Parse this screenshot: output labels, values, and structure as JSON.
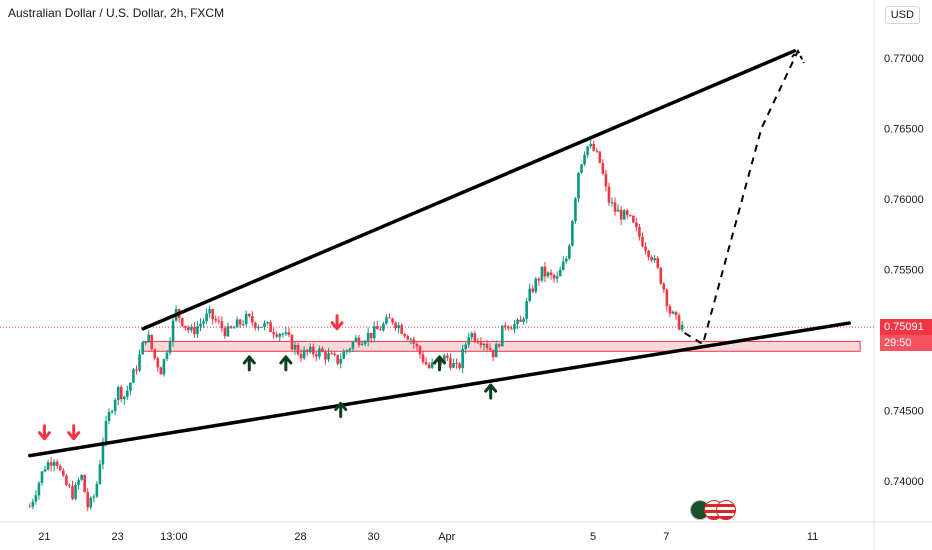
{
  "header": {
    "title": "Australian Dollar / U.S. Dollar, 2h, FXCM",
    "currency": "USD"
  },
  "price_tag": {
    "price": "0.75091",
    "countdown": "29:50"
  },
  "flags": [
    "australia-flag-icon",
    "usa-flag-icon",
    "usa-flag-icon"
  ],
  "colors": {
    "up": "#089981",
    "down": "#f23645",
    "trendline": "#000000",
    "support_zone_fill": "#f8c8cc",
    "support_zone_stroke": "#f23645",
    "arrow_up": "#0b3d1f",
    "arrow_down": "#f23645"
  },
  "chart_data": {
    "type": "candlestick",
    "symbol": "AUDUSD",
    "timeframe": "2h",
    "x_axis_labels": [
      "21",
      "23",
      "13:00",
      "28",
      "30",
      "Apr",
      "5",
      "7",
      "11"
    ],
    "y_axis_labels": [
      "0.77000",
      "0.76500",
      "0.76000",
      "0.75500",
      "0.75000",
      "0.74500",
      "0.74000"
    ],
    "ylim": [
      0.737,
      0.774
    ],
    "x_range_days": [
      20.6,
      42.9
    ],
    "x_tick_days": [
      21,
      23,
      24.54,
      28,
      30,
      32,
      36,
      38,
      42
    ],
    "current_price": 0.75091,
    "close_path": [
      [
        20.6,
        0.7382
      ],
      [
        21.0,
        0.741
      ],
      [
        21.3,
        0.7418
      ],
      [
        21.5,
        0.74
      ],
      [
        21.8,
        0.739
      ],
      [
        22.0,
        0.7405
      ],
      [
        22.2,
        0.738
      ],
      [
        22.4,
        0.7392
      ],
      [
        22.6,
        0.743
      ],
      [
        22.8,
        0.745
      ],
      [
        23.0,
        0.7465
      ],
      [
        23.2,
        0.746
      ],
      [
        23.5,
        0.748
      ],
      [
        23.8,
        0.7505
      ],
      [
        24.0,
        0.7488
      ],
      [
        24.2,
        0.7478
      ],
      [
        24.4,
        0.75
      ],
      [
        24.6,
        0.752
      ],
      [
        25.0,
        0.7505
      ],
      [
        25.5,
        0.7518
      ],
      [
        26.0,
        0.7505
      ],
      [
        26.5,
        0.7515
      ],
      [
        27.0,
        0.751
      ],
      [
        27.5,
        0.7505
      ],
      [
        28.0,
        0.749
      ],
      [
        28.5,
        0.7492
      ],
      [
        29.0,
        0.7485
      ],
      [
        29.5,
        0.75
      ],
      [
        30.0,
        0.7505
      ],
      [
        30.5,
        0.7515
      ],
      [
        31.0,
        0.7502
      ],
      [
        31.5,
        0.748
      ],
      [
        32.0,
        0.7488
      ],
      [
        32.3,
        0.7478
      ],
      [
        32.6,
        0.7505
      ],
      [
        33.0,
        0.75
      ],
      [
        33.3,
        0.749
      ],
      [
        33.6,
        0.7512
      ],
      [
        34.0,
        0.751
      ],
      [
        34.3,
        0.7535
      ],
      [
        34.6,
        0.7548
      ],
      [
        35.0,
        0.7542
      ],
      [
        35.3,
        0.756
      ],
      [
        35.6,
        0.762
      ],
      [
        35.8,
        0.7638
      ],
      [
        36.0,
        0.7635
      ],
      [
        36.2,
        0.7625
      ],
      [
        36.4,
        0.76
      ],
      [
        36.6,
        0.7592
      ],
      [
        37.0,
        0.7585
      ],
      [
        37.3,
        0.7572
      ],
      [
        37.6,
        0.756
      ],
      [
        37.9,
        0.754
      ],
      [
        38.1,
        0.752
      ],
      [
        38.3,
        0.7512
      ],
      [
        38.5,
        0.7509
      ]
    ],
    "trendlines": [
      {
        "name": "upper-resistance",
        "start": [
          23.7,
          0.7508
        ],
        "end": [
          41.5,
          0.7705
        ]
      },
      {
        "name": "lower-support",
        "start": [
          20.6,
          0.7418
        ],
        "end": [
          43.0,
          0.7512
        ]
      }
    ],
    "support_zone": {
      "y_range": [
        0.7492,
        0.7499
      ],
      "x_range": [
        23.7,
        43.3
      ]
    },
    "projection": [
      [
        38.5,
        0.7505
      ],
      [
        39.0,
        0.7497
      ],
      [
        40.6,
        0.765
      ],
      [
        41.6,
        0.7705
      ]
    ],
    "arrows_up": [
      [
        26.6,
        0.7488
      ],
      [
        27.6,
        0.7488
      ],
      [
        29.1,
        0.7455
      ],
      [
        31.8,
        0.7488
      ],
      [
        33.2,
        0.7468
      ]
    ],
    "arrows_down": [
      [
        21.0,
        0.743
      ],
      [
        21.8,
        0.743
      ],
      [
        29.0,
        0.7508
      ]
    ]
  }
}
